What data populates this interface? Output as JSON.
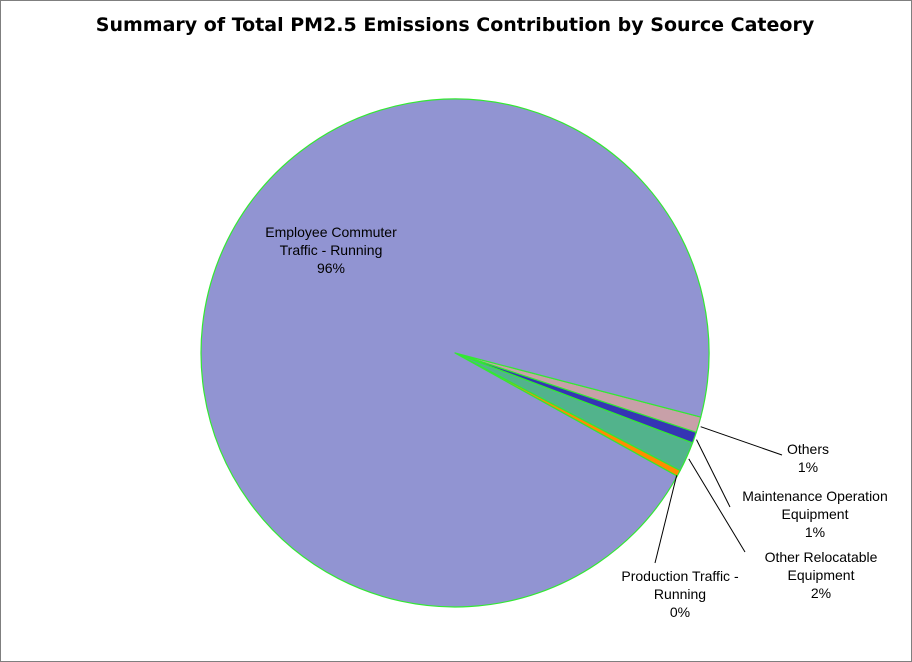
{
  "chart_data": {
    "type": "pie",
    "title": "Summary of Total PM2.5 Emissions Contribution by Source Cateory",
    "slices": [
      {
        "label": [
          "Employee Commuter",
          "Traffic - Running"
        ],
        "pct_label": "96%",
        "value": 96.0,
        "color": "#9194d2"
      },
      {
        "label": [
          "Production Traffic -",
          "Running"
        ],
        "pct_label": "0%",
        "value": 0.4,
        "color": "#ff8c00"
      },
      {
        "label": [
          "Other Relocatable",
          "Equipment"
        ],
        "pct_label": "2%",
        "value": 1.9,
        "color": "#52b38c"
      },
      {
        "label": [
          "Maintenance Operation",
          "Equipment"
        ],
        "pct_label": "1%",
        "value": 0.7,
        "color": "#3535b4"
      },
      {
        "label": [
          "Others"
        ],
        "pct_label": "1%",
        "value": 1.0,
        "color": "#c8a0a8"
      }
    ],
    "slice_outline": "#33e833"
  }
}
